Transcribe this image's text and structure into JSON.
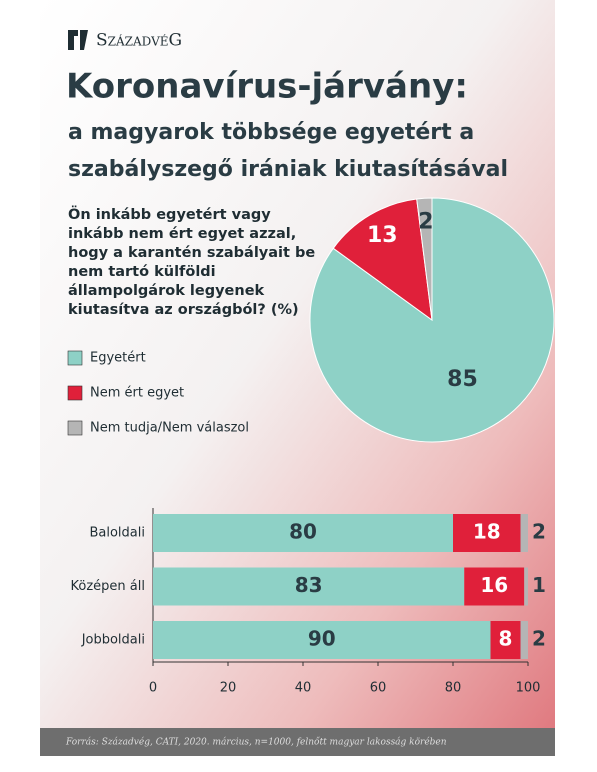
{
  "brand": "SzázadvéG",
  "source": "Forrás: Századvég, CATI, 2020. március, n=1000, felnőtt magyar lakosság körében",
  "chart_data": [
    {
      "type": "pie",
      "title": "Koronavírus-járvány:",
      "subtitle": [
        "a magyarok többsége egyetért a",
        "szabályszegő irániak kiutasításával"
      ],
      "question": "Ön inkább egyetért vagy inkább nem ért egyet azzal, hogy a karantén szabályait be nem tartó külföldi állampolgárok legyenek kiutasítva az országból? (%)",
      "categories": [
        "Egyetért",
        "Nem ért egyet",
        "Nem tudja/Nem válaszol"
      ],
      "values": [
        85,
        13,
        2
      ],
      "colors": [
        "#8ed1c6",
        "#e0203a",
        "#b5b5b5"
      ]
    },
    {
      "type": "stacked-bar-horizontal",
      "categories": [
        "Baloldali",
        "Középen áll",
        "Jobboldali"
      ],
      "series": [
        {
          "color": "#8ed1c6",
          "values": [
            80,
            83,
            90
          ]
        },
        {
          "color": "#e0203a",
          "values": [
            18,
            16,
            8
          ]
        },
        {
          "color": "#b5b5b5",
          "values": [
            2,
            1,
            2
          ]
        }
      ],
      "xlim": [
        0,
        100
      ],
      "xticks": [
        0,
        20,
        40,
        60,
        80,
        100
      ]
    }
  ]
}
